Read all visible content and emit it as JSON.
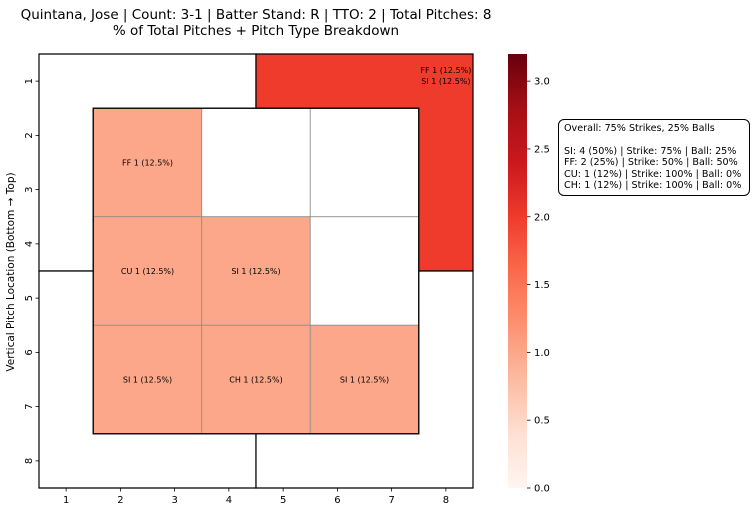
{
  "chart_data": {
    "type": "heatmap",
    "title_line1": "Quintana, Jose | Count: 3-1 | Batter Stand: R | TTO: 2 | Total Pitches: 8",
    "title_line2": "% of Total Pitches + Pitch Type Breakdown",
    "ylabel": "Vertical Pitch Location (Bottom → Top)",
    "xlabel": "",
    "x_ticks": [
      "1",
      "2",
      "3",
      "4",
      "5",
      "6",
      "7",
      "8"
    ],
    "y_ticks": [
      "1",
      "2",
      "3",
      "4",
      "5",
      "6",
      "7",
      "8"
    ],
    "colormap": "Reds",
    "colorbar": {
      "min": 0.0,
      "max": 3.2,
      "ticks": [
        "0.0",
        "0.5",
        "1.0",
        "1.5",
        "2.0",
        "2.5",
        "3.0"
      ]
    },
    "grid": false,
    "zones": [
      {
        "id": "outer-top-left",
        "value": 0,
        "label": []
      },
      {
        "id": "outer-top-right",
        "value": 2,
        "label": [
          "FF 1 (12.5%)",
          "SI 1 (12.5%)"
        ]
      },
      {
        "id": "outer-bottom-left",
        "value": 0,
        "label": []
      },
      {
        "id": "outer-bottom-right",
        "value": 0,
        "label": []
      }
    ],
    "inner_cells": [
      {
        "row": 1,
        "col": 1,
        "value": 1,
        "label": "FF 1 (12.5%)"
      },
      {
        "row": 1,
        "col": 2,
        "value": 0,
        "label": ""
      },
      {
        "row": 1,
        "col": 3,
        "value": 0,
        "label": ""
      },
      {
        "row": 2,
        "col": 1,
        "value": 1,
        "label": "CU 1 (12.5%)"
      },
      {
        "row": 2,
        "col": 2,
        "value": 1,
        "label": "SI 1 (12.5%)"
      },
      {
        "row": 2,
        "col": 3,
        "value": 0,
        "label": ""
      },
      {
        "row": 3,
        "col": 1,
        "value": 1,
        "label": "SI 1 (12.5%)"
      },
      {
        "row": 3,
        "col": 2,
        "value": 1,
        "label": "CH 1 (12.5%)"
      },
      {
        "row": 3,
        "col": 3,
        "value": 1,
        "label": "SI 1 (12.5%)"
      }
    ]
  },
  "summary": {
    "overall": "Overall: 75% Strikes, 25% Balls",
    "lines": [
      "SI: 4 (50%) | Strike: 75% | Ball: 25%",
      "FF: 2 (25%) | Strike: 50% | Ball: 50%",
      "CU: 1 (12%) | Strike: 100% | Ball: 0%",
      "CH: 1 (12%) | Strike: 100% | Ball: 0%"
    ]
  }
}
